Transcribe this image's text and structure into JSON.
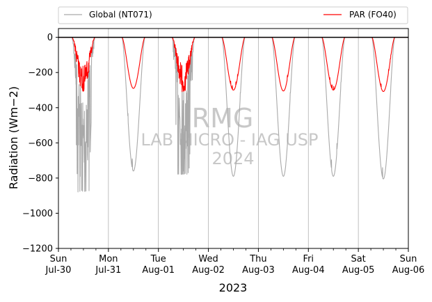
{
  "chart_data": {
    "type": "line",
    "xlabel": "2023",
    "ylabel": "Radiation (Wm−2)",
    "ylim": [
      -1200,
      50
    ],
    "yticks": [
      0,
      -200,
      -400,
      -600,
      -800,
      -1000,
      -1200
    ],
    "ytick_labels": [
      "0",
      "−200",
      "−400",
      "−600",
      "−800",
      "−1000",
      "−1200"
    ],
    "xlim": [
      "2023-07-30T00:00",
      "2023-08-06T00:00"
    ],
    "xticks": [
      {
        "date": "2023-07-30",
        "day": "Sun",
        "label": "Jul-30"
      },
      {
        "date": "2023-07-31",
        "day": "Mon",
        "label": "Jul-31"
      },
      {
        "date": "2023-08-01",
        "day": "Tue",
        "label": "Aug-01"
      },
      {
        "date": "2023-08-02",
        "day": "Wed",
        "label": "Aug-02"
      },
      {
        "date": "2023-08-03",
        "day": "Thu",
        "label": "Aug-03"
      },
      {
        "date": "2023-08-04",
        "day": "Fri",
        "label": "Aug-04"
      },
      {
        "date": "2023-08-05",
        "day": "Sat",
        "label": "Aug-05"
      },
      {
        "date": "2023-08-06",
        "day": "Sun",
        "label": "Aug-06"
      }
    ],
    "grid": "vertical lines at day boundaries",
    "zero_line": true,
    "legend_position": "top, above plot",
    "watermark": [
      "RMG",
      "LAB MICRO - IAG USP",
      "2024"
    ],
    "series": [
      {
        "name": "Global (NT071)",
        "color": "#a9a9a9",
        "daily_min": [
          {
            "date": "2023-07-30",
            "min": -870,
            "cloudy": true
          },
          {
            "date": "2023-07-31",
            "min": -760,
            "cloudy": false
          },
          {
            "date": "2023-08-01",
            "min": -770,
            "cloudy": true
          },
          {
            "date": "2023-08-02",
            "min": -790,
            "cloudy": false
          },
          {
            "date": "2023-08-03",
            "min": -790,
            "cloudy": false
          },
          {
            "date": "2023-08-04",
            "min": -790,
            "cloudy": false
          },
          {
            "date": "2023-08-05",
            "min": -805,
            "cloudy": false
          }
        ]
      },
      {
        "name": "PAR (FO40)",
        "color": "#ff0000",
        "daily_min": [
          {
            "date": "2023-07-30",
            "min": -300,
            "cloudy": true
          },
          {
            "date": "2023-07-31",
            "min": -290,
            "cloudy": false
          },
          {
            "date": "2023-08-01",
            "min": -300,
            "cloudy": true
          },
          {
            "date": "2023-08-02",
            "min": -300,
            "cloudy": false
          },
          {
            "date": "2023-08-03",
            "min": -305,
            "cloudy": false
          },
          {
            "date": "2023-08-04",
            "min": -300,
            "cloudy": false
          },
          {
            "date": "2023-08-05",
            "min": -308,
            "cloudy": false
          }
        ]
      }
    ],
    "daylight_hours": [
      6.5,
      17.5
    ]
  }
}
